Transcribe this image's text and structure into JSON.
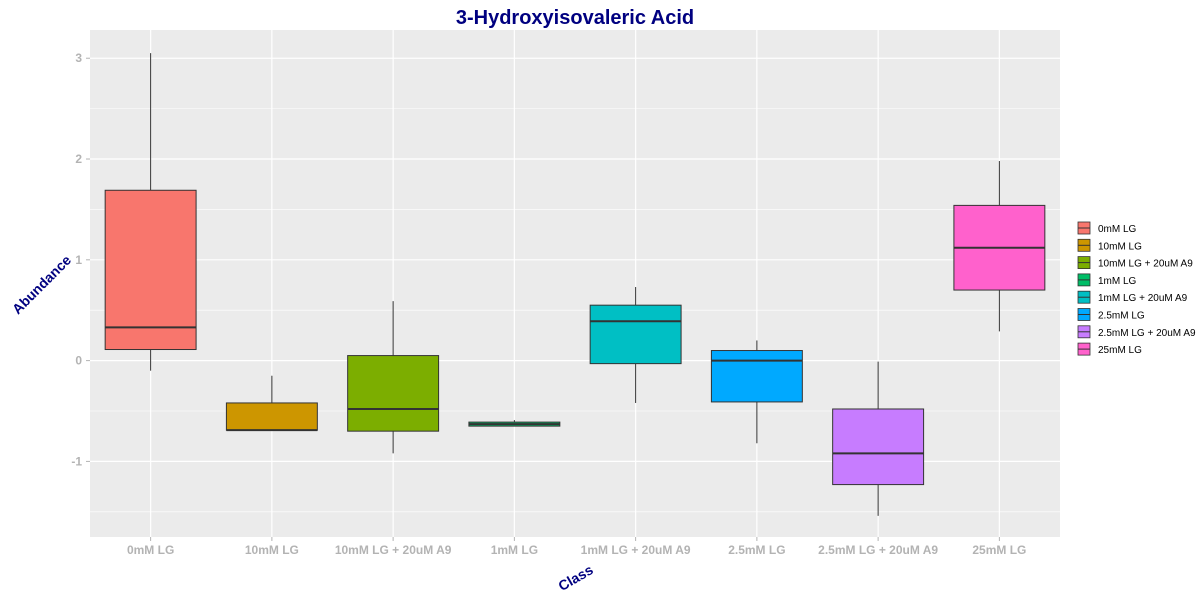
{
  "chart_data": {
    "type": "boxplot",
    "title": "3-Hydroxyisovaleric Acid",
    "xlabel": "Class",
    "ylabel": "Abundance",
    "ylim": [
      -1.75,
      3.28
    ],
    "yticks": [
      3,
      2,
      1,
      0,
      -1
    ],
    "ytick_labels": [
      "3",
      "2",
      "1",
      "0",
      "-1"
    ],
    "grid": true,
    "legend_position": "right",
    "categories": [
      "0mM LG",
      "10mM LG",
      "10mM LG + 20uM A9",
      "1mM LG",
      "1mM LG + 20uM A9",
      "2.5mM LG",
      "2.5mM LG + 20uM A9",
      "25mM LG"
    ],
    "series": [
      {
        "name": "0mM LG",
        "color": "#F8766D",
        "min": -0.1,
        "q1": 0.11,
        "median": 0.33,
        "q3": 1.69,
        "max": 3.05
      },
      {
        "name": "10mM LG",
        "color": "#CD9600",
        "min": -0.69,
        "q1": -0.69,
        "median": -0.69,
        "q3": -0.42,
        "max": -0.15
      },
      {
        "name": "10mM LG + 20uM A9",
        "color": "#7CAE00",
        "min": -0.92,
        "q1": -0.7,
        "median": -0.48,
        "q3": 0.05,
        "max": 0.59
      },
      {
        "name": "1mM LG",
        "color": "#00BE67",
        "min": -0.65,
        "q1": -0.65,
        "median": -0.63,
        "q3": -0.61,
        "max": -0.59
      },
      {
        "name": "1mM LG + 20uM A9",
        "color": "#00BFC4",
        "min": -0.42,
        "q1": -0.03,
        "median": 0.39,
        "q3": 0.55,
        "max": 0.73
      },
      {
        "name": "2.5mM LG",
        "color": "#00A9FF",
        "min": -0.82,
        "q1": -0.41,
        "median": 0.0,
        "q3": 0.1,
        "max": 0.2
      },
      {
        "name": "2.5mM LG + 20uM A9",
        "color": "#C77CFF",
        "min": -1.54,
        "q1": -1.23,
        "median": -0.92,
        "q3": -0.48,
        "max": -0.01
      },
      {
        "name": "25mM LG",
        "color": "#FF61CC",
        "min": 0.29,
        "q1": 0.7,
        "median": 1.12,
        "q3": 1.54,
        "max": 1.98
      }
    ]
  }
}
